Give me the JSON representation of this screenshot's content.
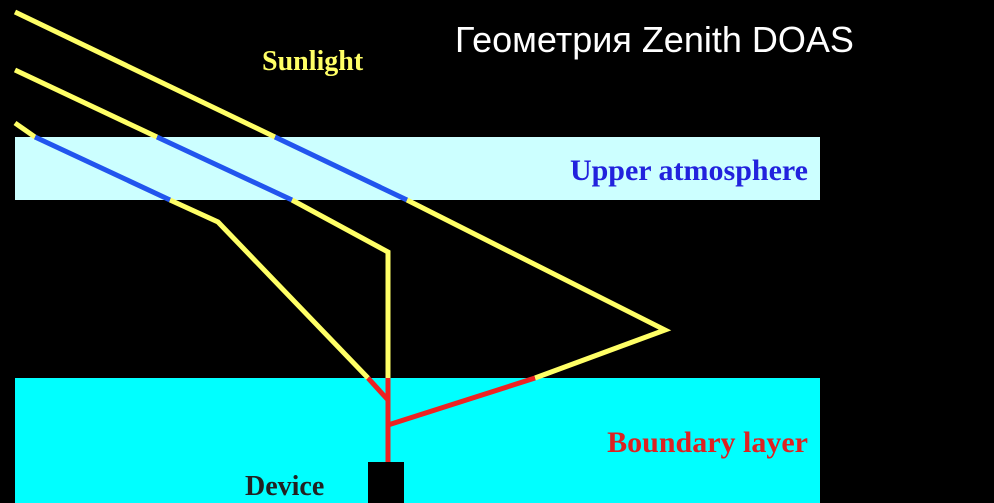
{
  "title": "Геометрия Zenith DOAS",
  "labels": {
    "sunlight": "Sunlight",
    "upper": "Upper atmosphere",
    "boundary": "Boundary layer",
    "device": "Device"
  }
}
